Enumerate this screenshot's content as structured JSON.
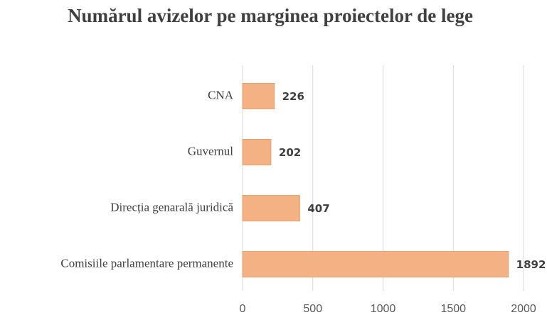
{
  "chart_data": {
    "type": "barh",
    "title": "Numărul avizelor pe marginea proiectelor de lege",
    "categories": [
      "CNA",
      "Guvernul",
      "Direcția genarală juridică",
      "Comisiile parlamentare permanente"
    ],
    "values": [
      226,
      202,
      407,
      1892
    ],
    "color": "#f4b183",
    "xlim": [
      0,
      2000
    ],
    "xticks": [
      0,
      500,
      1000,
      1500,
      2000
    ],
    "grid": true
  }
}
